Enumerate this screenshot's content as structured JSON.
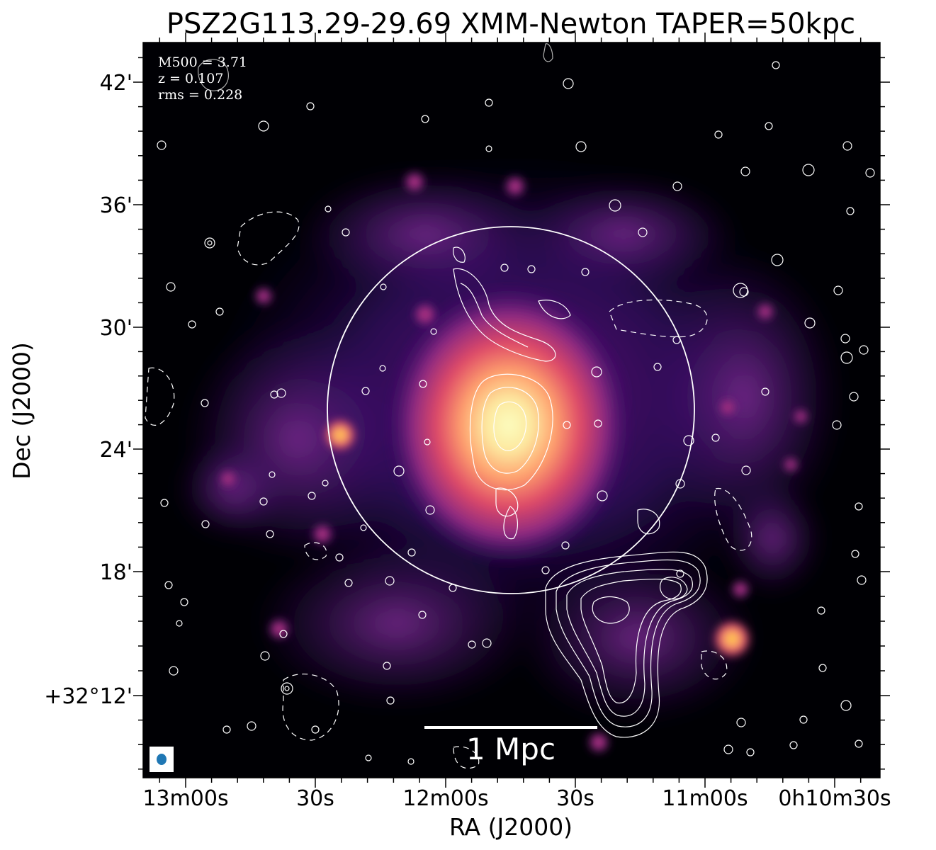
{
  "title": "PSZ2G113.29-29.69 XMM-Newton TAPER=50kpc",
  "axes": {
    "xlabel": "RA (J2000)",
    "ylabel": "Dec (J2000)",
    "xticks": [
      "13m00s",
      "30s",
      "12m00s",
      "30s",
      "11m00s",
      "0h10m30s"
    ],
    "yticks": [
      "42'",
      "36'",
      "30'",
      "24'",
      "18'",
      "+32°12'"
    ]
  },
  "info": {
    "m500": "M500 = 3.71",
    "z": "z = 0.107",
    "rms": "rms = 0.228"
  },
  "scalebar": {
    "label": "1 Mpc",
    "length_mpc": 1
  },
  "beam": {
    "color": "#1f77b4"
  },
  "colors": {
    "background": "#000004",
    "colormap": [
      "#000004",
      "#3b0f70",
      "#8c2981",
      "#de4968",
      "#fe9f6d",
      "#fcfdbf"
    ],
    "contours": "#ffffff"
  }
}
